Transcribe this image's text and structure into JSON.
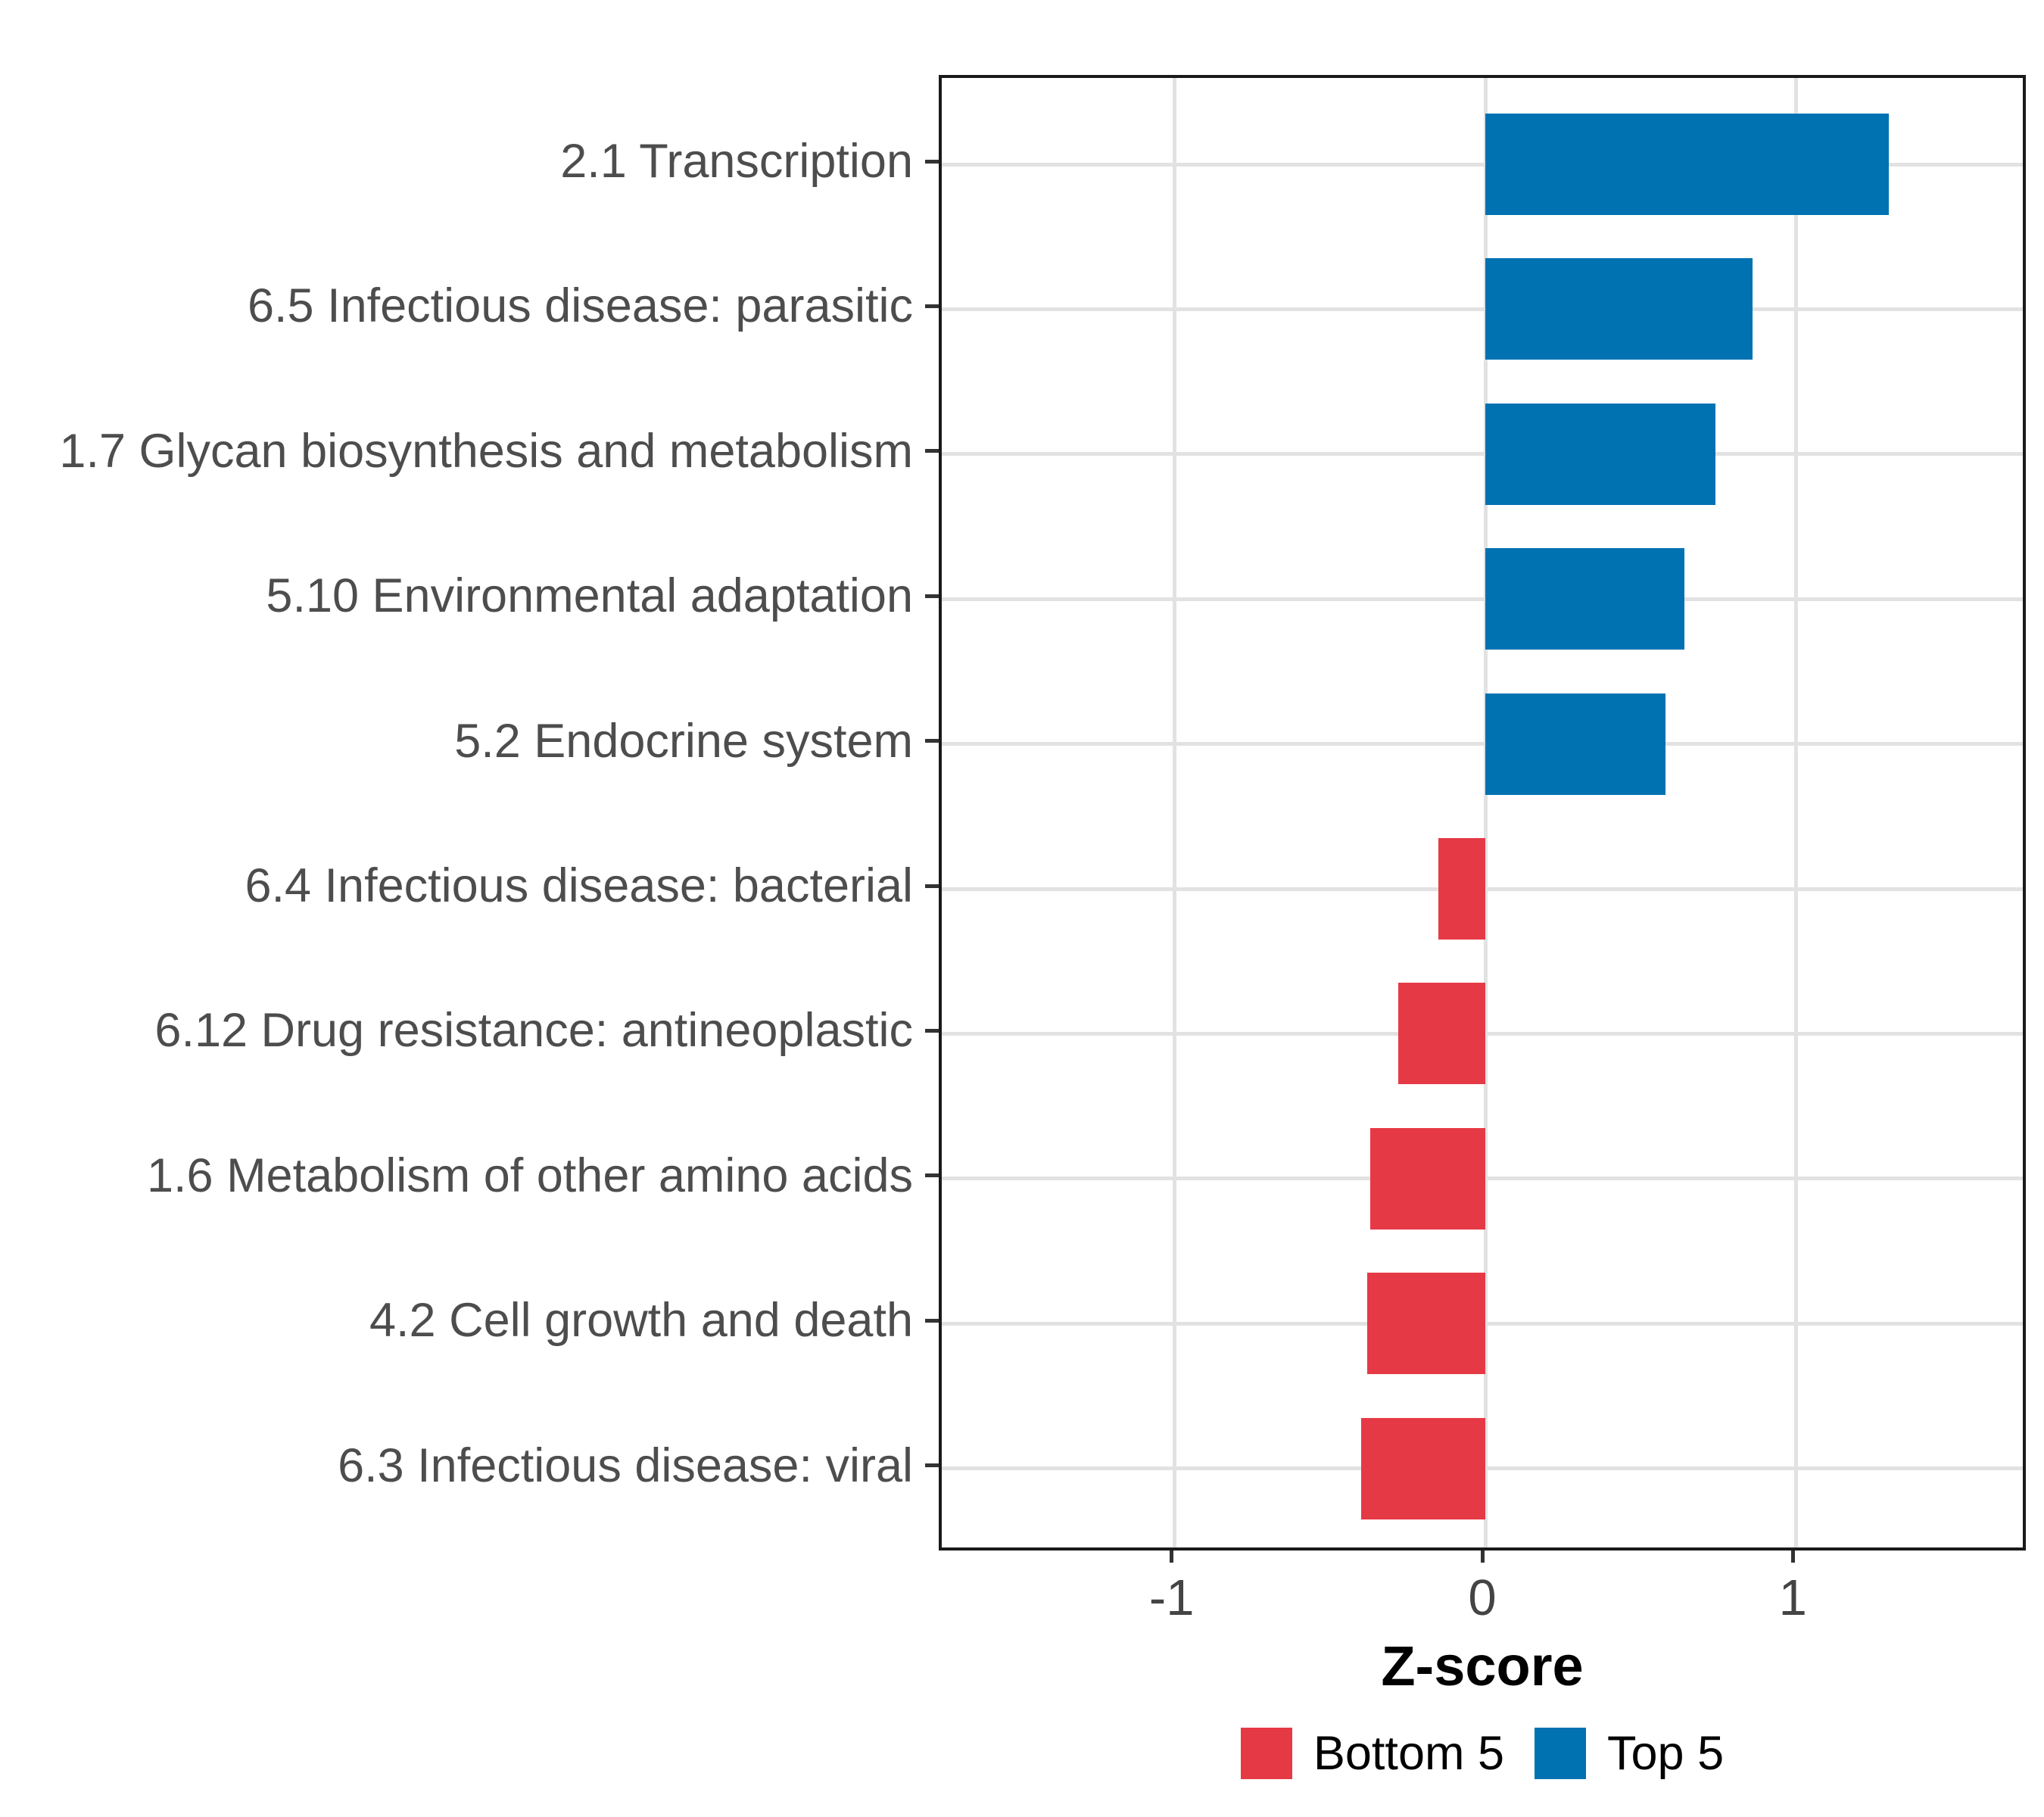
{
  "chart_data": {
    "type": "bar",
    "orientation": "horizontal",
    "title": "",
    "xlabel": "Z-score",
    "ylabel": "",
    "xlim": [
      -1.75,
      1.75
    ],
    "x_ticks": [
      -1,
      0,
      1
    ],
    "x_tick_labels": [
      "-1",
      "0",
      "1"
    ],
    "grid": true,
    "legend_position": "bottom",
    "categories": [
      "2.1 Transcription",
      "6.5 Infectious disease: parasitic",
      "1.7 Glycan biosynthesis and metabolism",
      "5.10 Environmental adaptation",
      "5.2 Endocrine system",
      "6.4 Infectious disease: bacterial",
      "6.12 Drug resistance: antineoplastic",
      "1.6 Metabolism of other amino acids",
      "4.2 Cell growth and death",
      "6.3 Infectious disease: viral"
    ],
    "values": [
      1.3,
      0.86,
      0.74,
      0.64,
      0.58,
      -0.15,
      -0.28,
      -0.37,
      -0.38,
      -0.4
    ],
    "groups": [
      "Top 5",
      "Top 5",
      "Top 5",
      "Top 5",
      "Top 5",
      "Bottom 5",
      "Bottom 5",
      "Bottom 5",
      "Bottom 5",
      "Bottom 5"
    ]
  },
  "legend": {
    "items": [
      {
        "label": "Bottom 5",
        "color": "#E63946"
      },
      {
        "label": "Top 5",
        "color": "#0072B2"
      }
    ]
  },
  "colors": {
    "top5_bar": "#0072B2",
    "bottom5_bar": "#E63946",
    "gridline": "#E2E2E2",
    "panel_border": "#1A1A1A",
    "axis_text": "#4D4D4D",
    "tick_mark": "#333333"
  }
}
